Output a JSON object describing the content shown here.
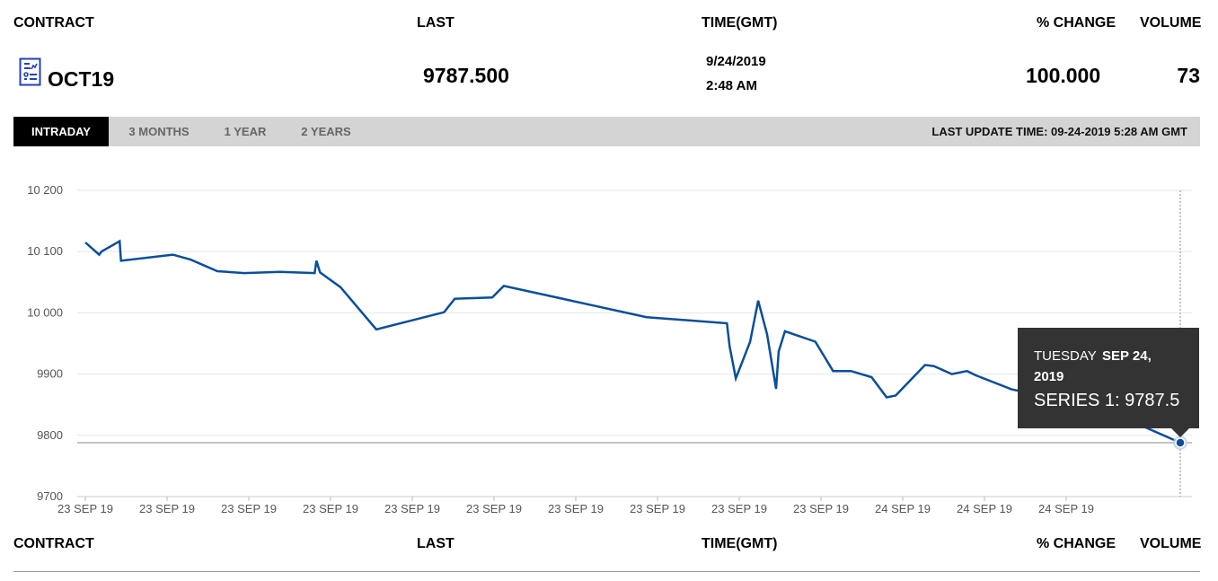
{
  "header": {
    "contract": "CONTRACT",
    "last": "LAST",
    "time": "TIME(GMT)",
    "pct_change": "% CHANGE",
    "volume": "VOLUME"
  },
  "row": {
    "icon": "document-chart-icon",
    "contract": "OCT19",
    "last": "9787.500",
    "date": "9/24/2019",
    "time": "2:48 AM",
    "pct_change": "100.000",
    "volume": "73"
  },
  "tabs": [
    {
      "label": "INTRADAY",
      "active": true
    },
    {
      "label": "3 MONTHS",
      "active": false
    },
    {
      "label": "1 YEAR",
      "active": false
    },
    {
      "label": "2 YEARS",
      "active": false
    }
  ],
  "last_update": "LAST UPDATE TIME: 09-24-2019 5:28 AM GMT",
  "colors": {
    "line": "#0b4e9a",
    "tooltip_bg": "#333333",
    "active_tab": "#000000",
    "tab_bar": "#d4d4d4"
  },
  "chart_data": {
    "type": "line",
    "ylim": [
      9700,
      10200
    ],
    "y_ticks": [
      "10 200",
      "10 100",
      "10 000",
      "9900",
      "9800",
      "9700"
    ],
    "y_tick_values": [
      10200,
      10100,
      10000,
      9900,
      9800,
      9700
    ],
    "x_tick_labels": [
      "23 SEP 19",
      "23 SEP 19",
      "23 SEP 19",
      "23 SEP 19",
      "23 SEP 19",
      "23 SEP 19",
      "23 SEP 19",
      "23 SEP 19",
      "23 SEP 19",
      "23 SEP 19",
      "24 SEP 19",
      "24 SEP 19",
      "24 SEP 19"
    ],
    "grid": true,
    "series": [
      {
        "name": "SERIES 1",
        "points": [
          [
            0.0,
            10115
          ],
          [
            1.55,
            10095
          ],
          [
            1.8,
            10100
          ],
          [
            3.85,
            10117
          ],
          [
            4.0,
            10085
          ],
          [
            9.8,
            10095
          ],
          [
            11.8,
            10087
          ],
          [
            14.8,
            10068
          ],
          [
            17.8,
            10065
          ],
          [
            21.8,
            10067
          ],
          [
            25.7,
            10065
          ],
          [
            25.9,
            10085
          ],
          [
            26.3,
            10066
          ],
          [
            28.6,
            10042
          ],
          [
            32.6,
            9973
          ],
          [
            40.2,
            10001
          ],
          [
            41.4,
            10023
          ],
          [
            45.6,
            10025
          ],
          [
            46.9,
            10044
          ],
          [
            62.9,
            9993
          ],
          [
            71.9,
            9983
          ],
          [
            72.2,
            9945
          ],
          [
            72.9,
            9893
          ],
          [
            74.5,
            9953
          ],
          [
            75.4,
            10020
          ],
          [
            76.4,
            9965
          ],
          [
            77.4,
            9876
          ],
          [
            77.7,
            9937
          ],
          [
            78.4,
            9970
          ],
          [
            81.8,
            9953
          ],
          [
            83.8,
            9905
          ],
          [
            85.8,
            9905
          ],
          [
            88.1,
            9895
          ],
          [
            89.8,
            9862
          ],
          [
            90.8,
            9865
          ],
          [
            94.1,
            9915
          ],
          [
            95.1,
            9913
          ],
          [
            97.1,
            9900
          ],
          [
            98.8,
            9905
          ],
          [
            99.8,
            9898
          ],
          [
            103.8,
            9875
          ],
          [
            113.8,
            9845
          ],
          [
            122.7,
            9788
          ]
        ]
      }
    ],
    "tooltip": {
      "day": "TUESDAY",
      "date": "SEP 24,",
      "year": "2019",
      "series_label": "SERIES 1: 9787.5"
    }
  }
}
